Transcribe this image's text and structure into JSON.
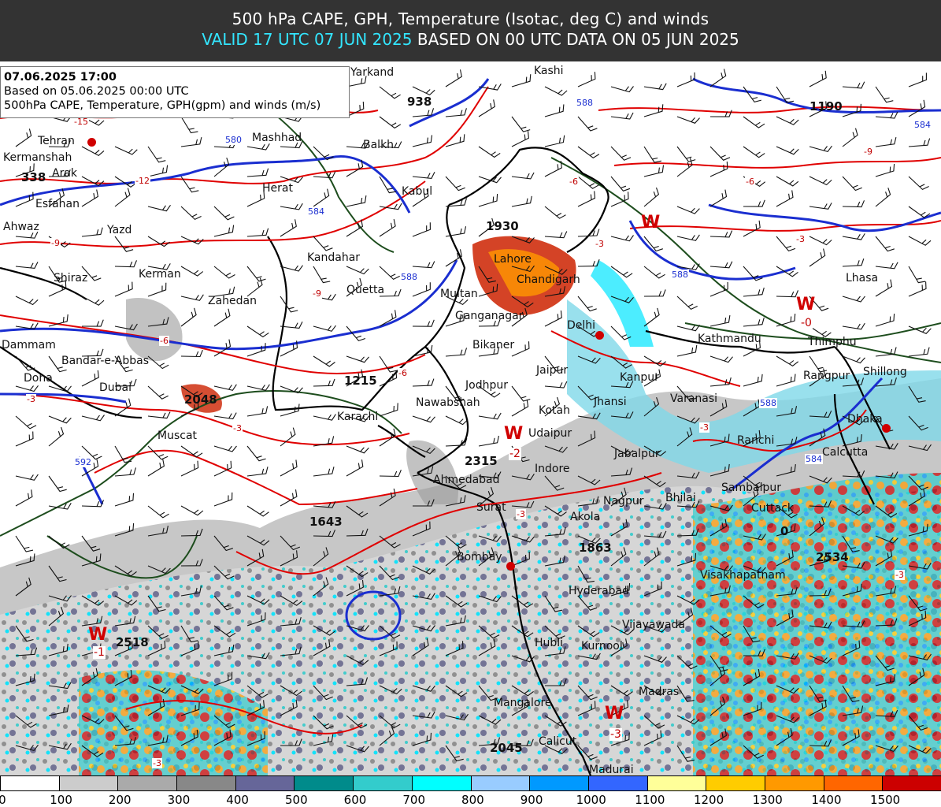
{
  "header": {
    "line1": "500 hPa CAPE, GPH, Temperature (Isotac, deg C) and winds",
    "valid": "VALID 17 UTC 07 JUN 2025",
    "based": "BASED ON 00 UTC DATA ON 05 JUN 2025"
  },
  "info": {
    "date": "07.06.2025 17:00",
    "based": "Based on 05.06.2025 00:00 UTC",
    "desc": "500hPa CAPE, Temperature, GPH(gpm) and winds (m/s)"
  },
  "colors": {
    "header_bg": "#333333",
    "valid_text": "#33e6ff",
    "temperature_isoline": "#e00000",
    "gph_isoline": "#1a2ed0",
    "border": "#000000",
    "coast": "#1d4d1d"
  },
  "legend": {
    "bins": [
      {
        "label": "0",
        "color": "#ffffff"
      },
      {
        "label": "100",
        "color": "#cccccc"
      },
      {
        "label": "200",
        "color": "#aaaaaa"
      },
      {
        "label": "300",
        "color": "#888888"
      },
      {
        "label": "400",
        "color": "#666699"
      },
      {
        "label": "500",
        "color": "#008b8b"
      },
      {
        "label": "600",
        "color": "#33cccc"
      },
      {
        "label": "700",
        "color": "#00ffff"
      },
      {
        "label": "800",
        "color": "#99ccff"
      },
      {
        "label": "900",
        "color": "#0099ff"
      },
      {
        "label": "1000",
        "color": "#3366ff"
      },
      {
        "label": "1100",
        "color": "#ffff99"
      },
      {
        "label": "1200",
        "color": "#ffcc00"
      },
      {
        "label": "1300",
        "color": "#ff9900"
      },
      {
        "label": "1400",
        "color": "#ff6600"
      },
      {
        "label": "1500",
        "color": "#cc0000"
      }
    ]
  },
  "cities": [
    {
      "name": "Yarkand"
    },
    {
      "name": "Kashi"
    },
    {
      "name": "Tehran"
    },
    {
      "name": "Kermanshah"
    },
    {
      "name": "Arak"
    },
    {
      "name": "Esfahan"
    },
    {
      "name": "Ahwaz"
    },
    {
      "name": "Yazd"
    },
    {
      "name": "Shiraz"
    },
    {
      "name": "Kerman"
    },
    {
      "name": "Mashhad"
    },
    {
      "name": "Balkh"
    },
    {
      "name": "Herat"
    },
    {
      "name": "Kabul"
    },
    {
      "name": "Kandahar"
    },
    {
      "name": "Quetta"
    },
    {
      "name": "Zahedan"
    },
    {
      "name": "Lahore"
    },
    {
      "name": "Chandigarh"
    },
    {
      "name": "Multan"
    },
    {
      "name": "Ganganagar"
    },
    {
      "name": "Delhi"
    },
    {
      "name": "Bikaner"
    },
    {
      "name": "Jaipur"
    },
    {
      "name": "Jodhpur"
    },
    {
      "name": "Nawabshah"
    },
    {
      "name": "Kotah"
    },
    {
      "name": "Jhansi"
    },
    {
      "name": "Kanpur"
    },
    {
      "name": "Varanasi"
    },
    {
      "name": "Kathmandu"
    },
    {
      "name": "Thimphu"
    },
    {
      "name": "Lhasa"
    },
    {
      "name": "Shillong"
    },
    {
      "name": "Rangpur"
    },
    {
      "name": "Dhaka"
    },
    {
      "name": "Calcutta"
    },
    {
      "name": "Ranchi"
    },
    {
      "name": "Jabalpur"
    },
    {
      "name": "Udaipur"
    },
    {
      "name": "Indore"
    },
    {
      "name": "Ahmedabad"
    },
    {
      "name": "Surat"
    },
    {
      "name": "Bombay"
    },
    {
      "name": "Akola"
    },
    {
      "name": "Nagpur"
    },
    {
      "name": "Bhilai"
    },
    {
      "name": "Sambalpur"
    },
    {
      "name": "Cuttack"
    },
    {
      "name": "Visakhapatnam"
    },
    {
      "name": "Hyderabad"
    },
    {
      "name": "Vijayawada"
    },
    {
      "name": "Hubli"
    },
    {
      "name": "Kurnool"
    },
    {
      "name": "Madras"
    },
    {
      "name": "Mangalore"
    },
    {
      "name": "Calicut"
    },
    {
      "name": "Madurai"
    },
    {
      "name": "Karachi"
    },
    {
      "name": "Muscat"
    },
    {
      "name": "Dubai"
    },
    {
      "name": "Doha"
    },
    {
      "name": "Dammam"
    },
    {
      "name": "Bandar-e-Abbas"
    }
  ],
  "heights": [
    "1190",
    "1930",
    "1215",
    "2315",
    "1643",
    "1863",
    "2534",
    "2518",
    "2045",
    "0",
    "938",
    "338",
    "2048"
  ],
  "w_markers": [
    {
      "label": "W",
      "temp": ""
    },
    {
      "label": "W",
      "temp": "-0"
    },
    {
      "label": "W",
      "temp": "-2"
    },
    {
      "label": "W",
      "temp": "-1"
    },
    {
      "label": "W",
      "temp": "-3"
    }
  ],
  "temp_isolines": [
    "-15",
    "-12",
    "-9",
    "-6",
    "-3",
    "-9",
    "-6",
    "-3",
    "-9",
    "-6",
    "-3",
    "-6",
    "-3",
    "-3",
    "-3",
    "-3",
    "-3"
  ],
  "gph_isolines": [
    "588",
    "580",
    "584",
    "588",
    "592",
    "584",
    "588",
    "584",
    "588"
  ]
}
